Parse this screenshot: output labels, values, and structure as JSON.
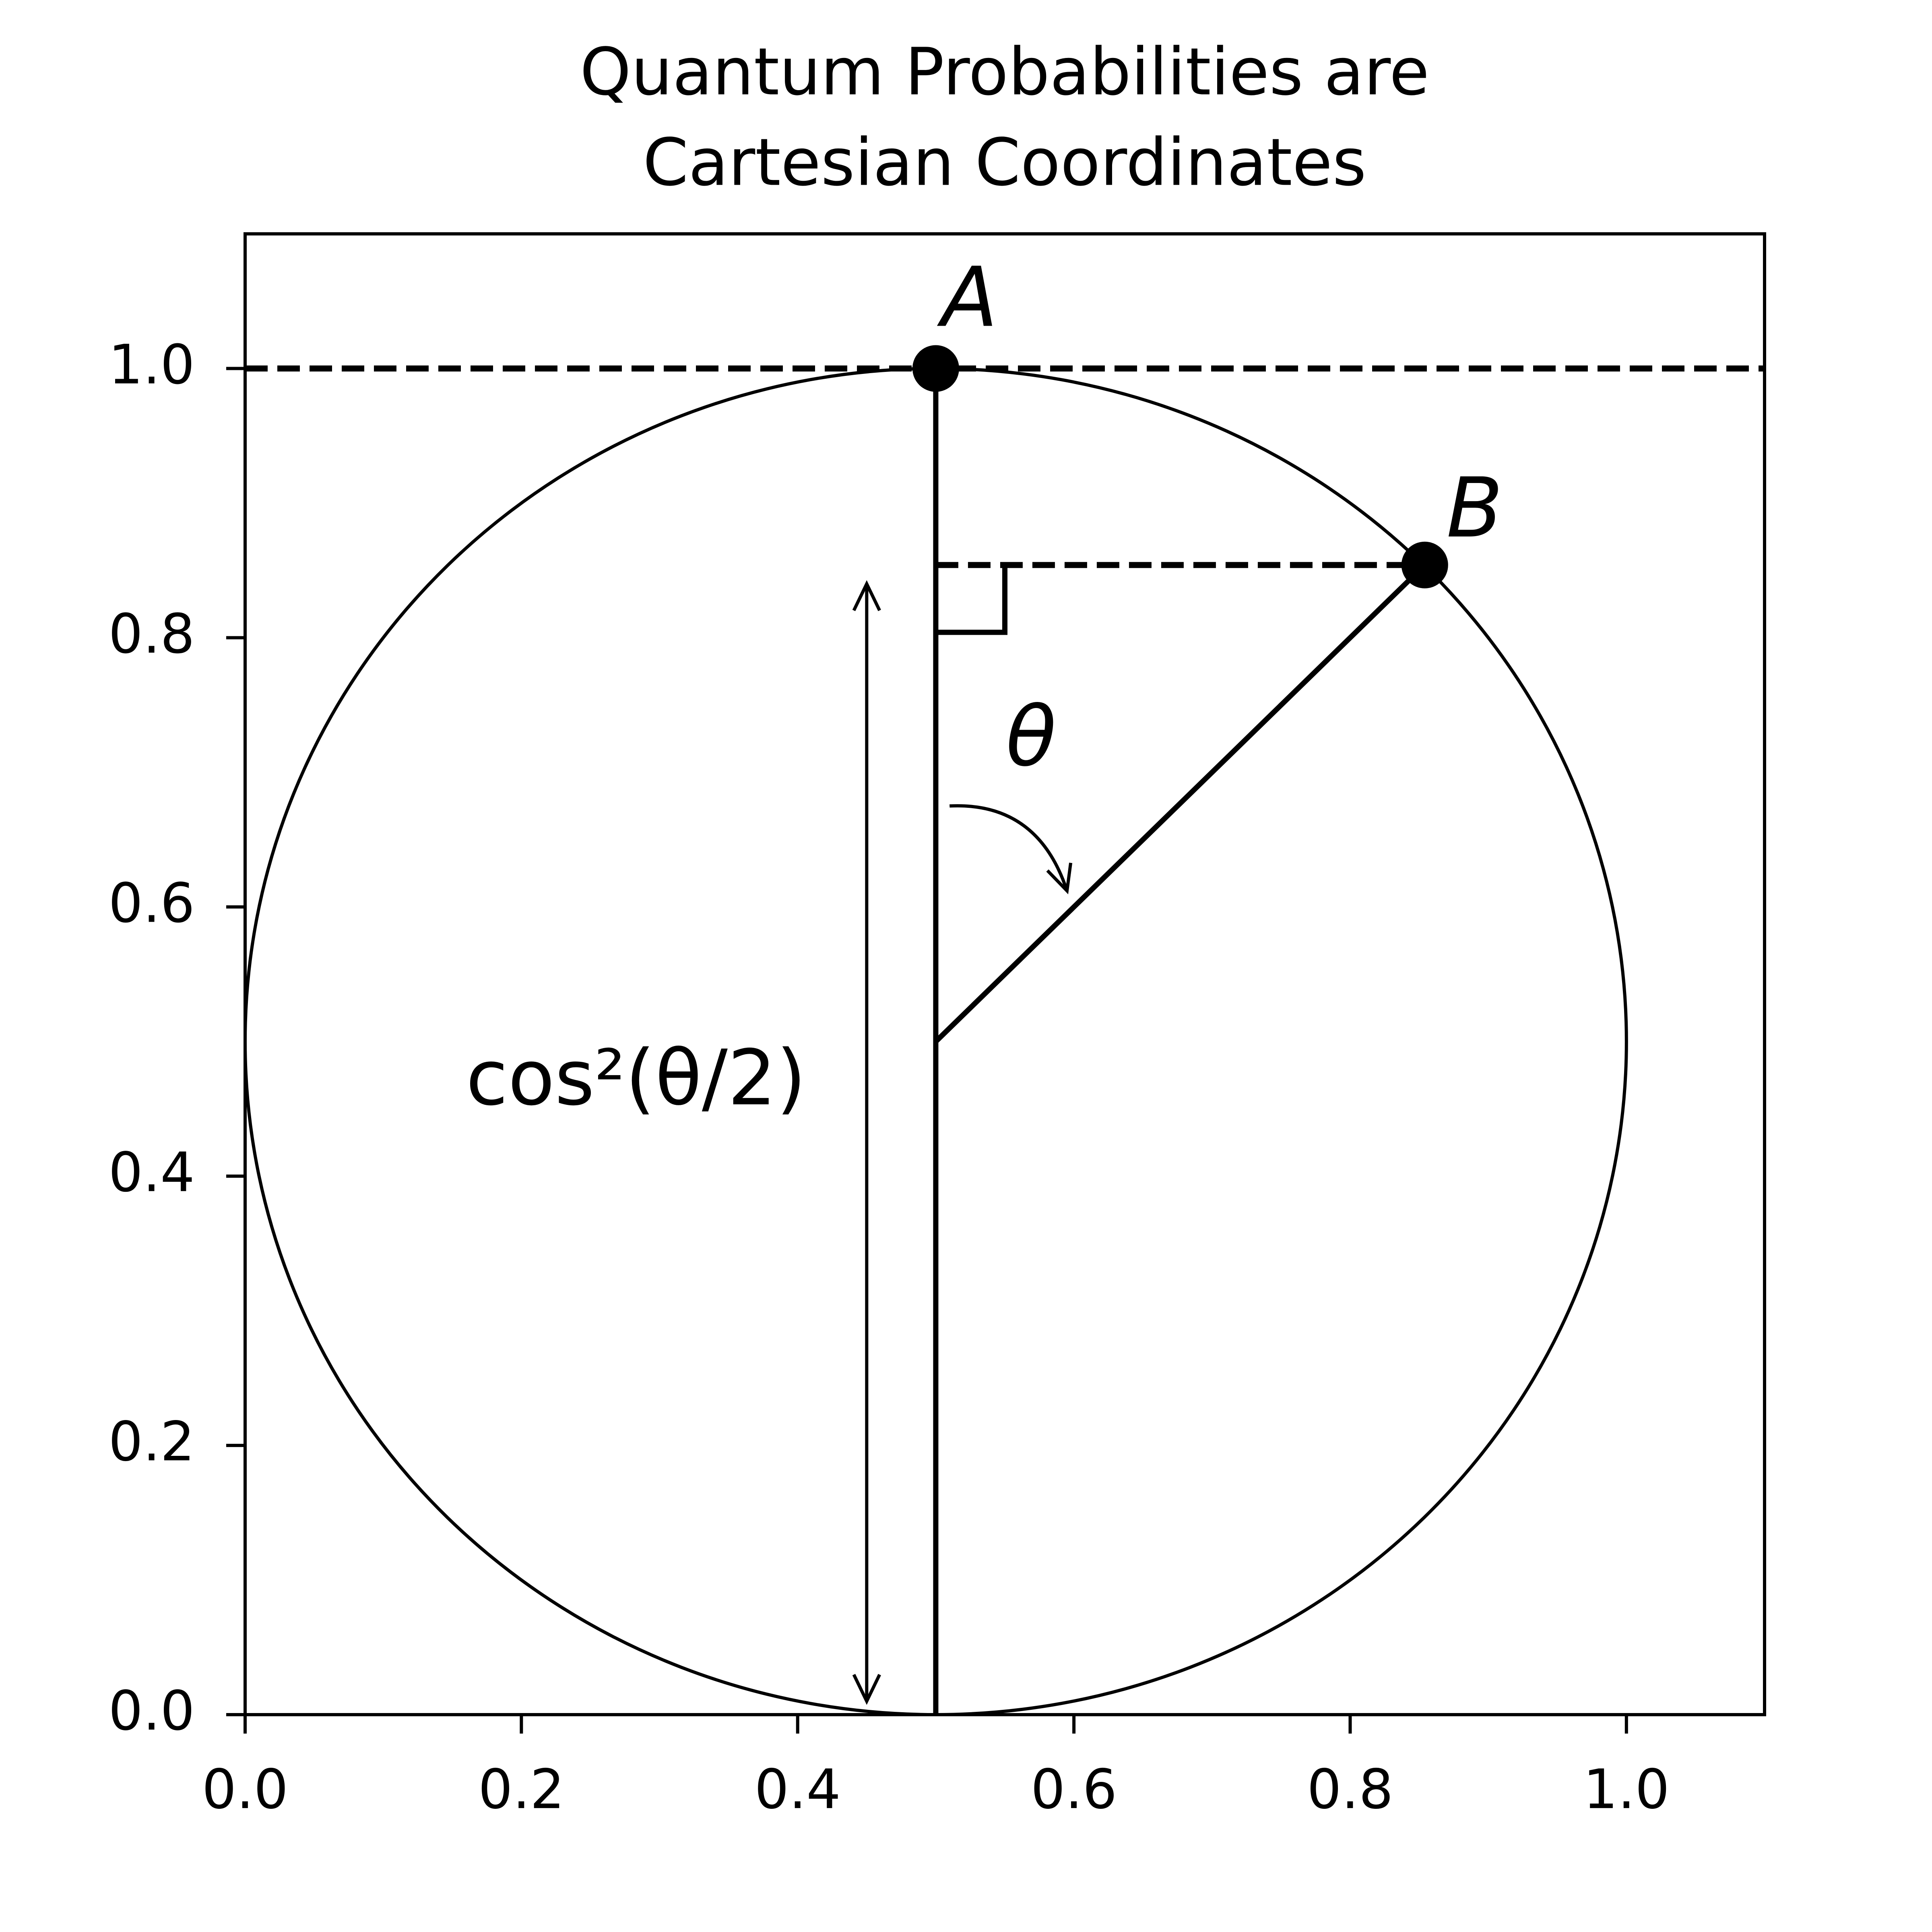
{
  "chart_data": {
    "type": "diagram",
    "title": [
      "Quantum Probabilities are",
      "Cartesian Coordinates"
    ],
    "xlim": [
      0,
      1.1
    ],
    "ylim": [
      0,
      1.1
    ],
    "xticks": [
      {
        "value": 0,
        "label": "0.0"
      },
      0.2,
      0.4,
      0.6,
      0.8,
      {
        "value": 1,
        "label": "1.0"
      }
    ],
    "yticks": [
      {
        "value": 0,
        "label": "0.0"
      },
      0.2,
      0.4,
      0.6,
      0.8,
      {
        "value": 1,
        "label": "1.0"
      }
    ],
    "color": "#000000",
    "circle": {
      "center": [
        0.5,
        0.5
      ],
      "radius": 0.5
    },
    "points": [
      {
        "label": "A",
        "x": 0.5,
        "y": 1
      },
      {
        "label": "B",
        "x": 0.854,
        "y": 0.854
      }
    ],
    "segments": [
      {
        "x": [
          0,
          1.1
        ],
        "y": [
          1,
          1
        ],
        "dashed": true
      },
      {
        "x": [
          0.5,
          0.854
        ],
        "y": [
          0.854,
          0.854
        ],
        "dashed": true
      },
      {
        "x": [
          0.5,
          0.5
        ],
        "y": [
          0,
          1
        ],
        "dashed": false
      },
      {
        "x": [
          0.5,
          0.854
        ],
        "y": [
          0.5,
          0.854
        ],
        "dashed": false
      },
      {
        "x": [
          0.55,
          0.55,
          0.5
        ],
        "y": [
          0.854,
          0.804,
          0.804
        ],
        "dashed": false
      }
    ],
    "double_arrow": {
      "x": [
        0.45,
        0.45
      ],
      "y": [
        0.01,
        0.84
      ]
    },
    "curved_arrow": {
      "x": [
        0.51,
        0.595
      ],
      "y": [
        0.675,
        0.612
      ]
    },
    "annotations": [
      {
        "text": "θ",
        "x": 0.569,
        "y": 0.722
      },
      {
        "text": "cos²(θ/2)",
        "x": 0.283,
        "y": 0.469
      }
    ]
  }
}
